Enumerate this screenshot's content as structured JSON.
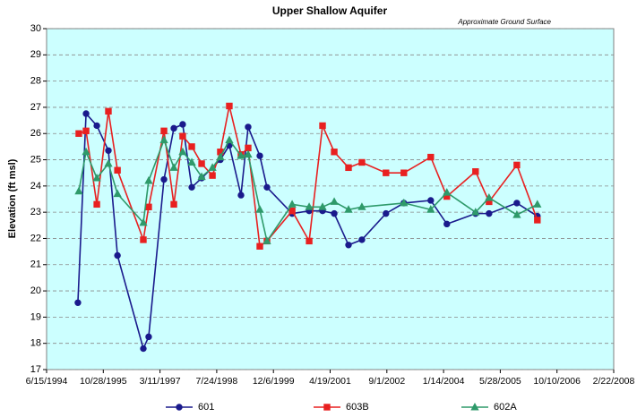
{
  "chart_data": {
    "type": "line",
    "title": "Upper Shallow Aquifer",
    "annotation": "Approximate Ground Surface",
    "ylabel": "Elevation (ft msl)",
    "xlim": [
      "6/15/1994",
      "2/22/2008"
    ],
    "xticks": [
      "6/15/1994",
      "10/28/1995",
      "3/11/1997",
      "7/24/1998",
      "12/6/1999",
      "4/19/2001",
      "9/1/2002",
      "1/14/2004",
      "5/28/2005",
      "10/10/2006",
      "2/22/2008"
    ],
    "ylim": [
      17,
      30
    ],
    "yticks": [
      17,
      18,
      19,
      20,
      21,
      22,
      23,
      24,
      25,
      26,
      27,
      28,
      29,
      30
    ],
    "grid": true,
    "legend": "bottom",
    "background": "#ccffff",
    "series": [
      {
        "name": "601",
        "color": "#1a1a8c",
        "marker": "circle",
        "x": [
          "3/18/1995",
          "5/29/1995",
          "9/1/1995",
          "12/12/1995",
          "3/1/1996",
          "10/15/1996",
          "12/1/1996",
          "4/15/1997",
          "7/11/1997",
          "9/27/1997",
          "12/16/1997",
          "3/13/1998",
          "8/25/1998",
          "11/12/1998",
          "2/23/1999",
          "4/27/1999",
          "8/8/1999",
          "10/10/1999",
          "5/19/2000",
          "10/16/2000",
          "2/11/2001",
          "5/25/2001",
          "9/28/2001",
          "1/24/2002",
          "8/24/2002",
          "1/29/2003",
          "9/23/2003",
          "2/12/2004",
          "10/22/2004",
          "2/18/2005",
          "10/21/2005",
          "4/20/2006"
        ],
        "values": [
          19.55,
          26.76,
          26.3,
          25.35,
          21.35,
          17.8,
          18.25,
          24.25,
          26.2,
          26.35,
          23.95,
          24.3,
          25.0,
          25.55,
          23.65,
          26.25,
          25.15,
          23.95,
          22.95,
          23.05,
          23.05,
          22.95,
          21.75,
          21.95,
          22.95,
          23.35,
          23.45,
          22.55,
          22.95,
          22.95,
          23.35,
          22.85
        ]
      },
      {
        "name": "603B",
        "color": "#e82020",
        "marker": "square",
        "x": [
          "3/26/1995",
          "5/29/1995",
          "9/1/1995",
          "12/12/1995",
          "3/1/1996",
          "10/15/1996",
          "12/1/1996",
          "4/15/1997",
          "7/11/1997",
          "9/27/1997",
          "12/16/1997",
          "3/13/1998",
          "6/16/1998",
          "8/25/1998",
          "11/12/1998",
          "2/23/1999",
          "4/27/1999",
          "8/8/1999",
          "10/10/1999",
          "5/19/2000",
          "10/16/2000",
          "2/11/2001",
          "5/25/2001",
          "9/28/2001",
          "1/24/2002",
          "8/24/2002",
          "1/29/2003",
          "9/23/2003",
          "2/12/2004",
          "10/22/2004",
          "2/18/2005",
          "10/21/2005",
          "4/20/2006"
        ],
        "values": [
          26.0,
          26.1,
          23.3,
          26.85,
          24.6,
          21.95,
          23.2,
          26.1,
          23.3,
          25.9,
          25.5,
          24.85,
          24.4,
          25.3,
          27.05,
          25.2,
          25.45,
          21.7,
          21.9,
          23.05,
          21.9,
          26.3,
          25.3,
          24.7,
          24.9,
          24.5,
          24.5,
          25.1,
          23.6,
          24.55,
          23.4,
          24.8,
          22.7
        ]
      },
      {
        "name": "602A",
        "color": "#2e9a6a",
        "marker": "triangle",
        "x": [
          "3/26/1995",
          "5/29/1995",
          "9/1/1995",
          "12/12/1995",
          "3/1/1996",
          "10/15/1996",
          "12/1/1996",
          "4/15/1997",
          "7/11/1997",
          "9/27/1997",
          "12/16/1997",
          "3/13/1998",
          "6/16/1998",
          "8/25/1998",
          "11/12/1998",
          "2/23/1999",
          "4/27/1999",
          "8/8/1999",
          "10/10/1999",
          "5/19/2000",
          "10/16/2000",
          "2/11/2001",
          "5/25/2001",
          "9/28/2001",
          "1/24/2002",
          "1/29/2003",
          "9/23/2003",
          "2/12/2004",
          "10/22/2004",
          "2/18/2005",
          "10/21/2005",
          "4/20/2006"
        ],
        "values": [
          23.8,
          25.3,
          24.3,
          24.85,
          23.7,
          22.6,
          24.2,
          25.75,
          24.7,
          25.3,
          24.9,
          24.35,
          24.7,
          25.1,
          25.75,
          25.15,
          25.2,
          23.1,
          21.9,
          23.3,
          23.2,
          23.2,
          23.4,
          23.1,
          23.2,
          23.35,
          23.1,
          23.75,
          23.0,
          23.55,
          22.9,
          23.3
        ]
      }
    ]
  }
}
